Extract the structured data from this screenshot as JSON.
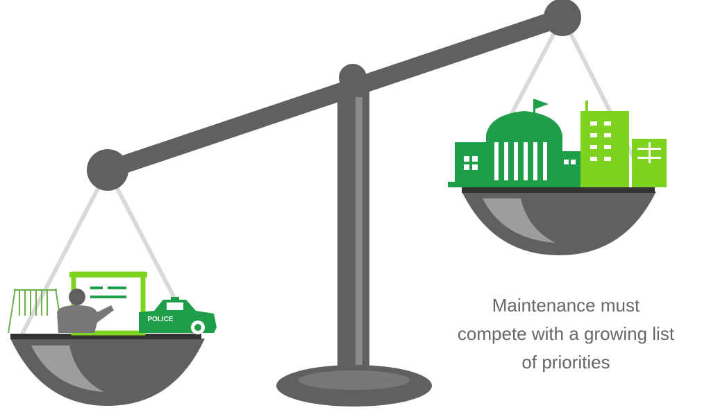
{
  "caption": {
    "lines": [
      "Maintenance must",
      "compete with a growing list",
      "of priorities"
    ]
  },
  "car": {
    "label": "POLICE"
  }
}
